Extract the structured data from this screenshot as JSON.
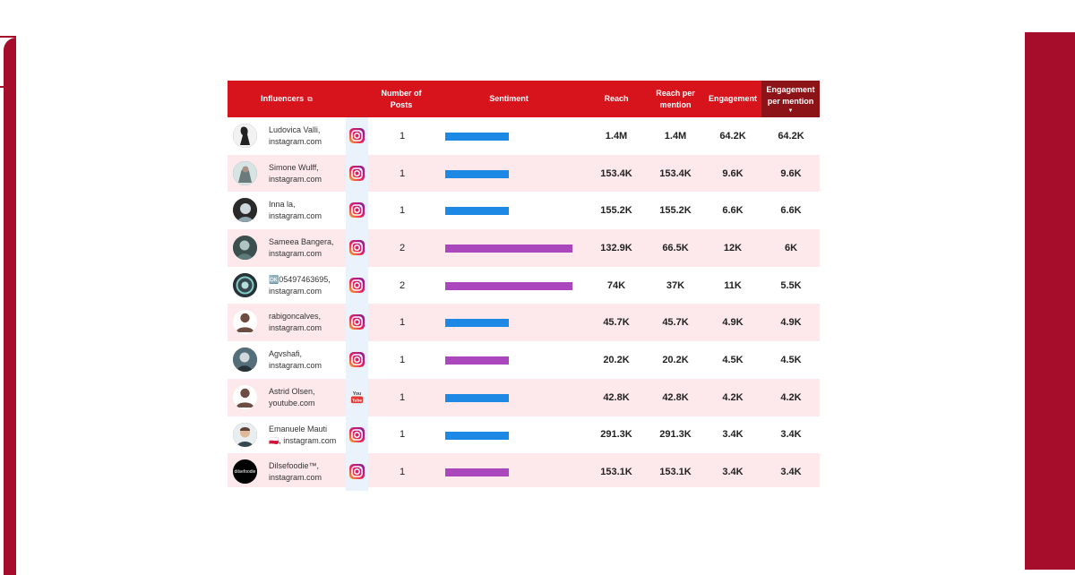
{
  "colors": {
    "header_bg": "#d7141c",
    "header_sorted_bg": "#8c1419",
    "row_alt_bg": "#fde9eb",
    "deco_bg": "#a50d2a",
    "positive_bar": "#1e88e5",
    "neutral_bar": "#ab47bc"
  },
  "header": {
    "influencers": "Influencers",
    "influencers_icon": "external-link-icon",
    "posts": "Number of Posts",
    "sentiment": "Sentiment",
    "reach": "Reach",
    "reach_per_mention": "Reach per mention",
    "engagement": "Engagement",
    "engagement_per_mention": "Engagement per mention",
    "sorted_column": "engagement_per_mention",
    "sort_direction": "descending"
  },
  "rows": [
    {
      "name": "Ludovica Valli, instagram.com",
      "platform": "instagram",
      "avatar": "photo",
      "posts": "1",
      "sentiment": "positive",
      "sentiment_fraction": 0.5,
      "reach": "1.4M",
      "reach_per_mention": "1.4M",
      "engagement": "64.2K",
      "engagement_per_mention": "64.2K"
    },
    {
      "name": "Simone Wulff, instagram.com",
      "platform": "instagram",
      "avatar": "photo",
      "posts": "1",
      "sentiment": "positive",
      "sentiment_fraction": 0.5,
      "reach": "153.4K",
      "reach_per_mention": "153.4K",
      "engagement": "9.6K",
      "engagement_per_mention": "9.6K"
    },
    {
      "name": "Inna la, instagram.com",
      "platform": "instagram",
      "avatar": "photo",
      "posts": "1",
      "sentiment": "positive",
      "sentiment_fraction": 0.5,
      "reach": "155.2K",
      "reach_per_mention": "155.2K",
      "engagement": "6.6K",
      "engagement_per_mention": "6.6K"
    },
    {
      "name": "Sameea Bangera, instagram.com",
      "platform": "instagram",
      "avatar": "photo",
      "posts": "2",
      "sentiment": "neutral",
      "sentiment_fraction": 1.0,
      "reach": "132.9K",
      "reach_per_mention": "66.5K",
      "engagement": "12K",
      "engagement_per_mention": "6K"
    },
    {
      "name_prefix": "🆗",
      "name": "05497463695, instagram.com",
      "platform": "instagram",
      "avatar": "photo",
      "posts": "2",
      "sentiment": "neutral",
      "sentiment_fraction": 1.0,
      "reach": "74K",
      "reach_per_mention": "37K",
      "engagement": "11K",
      "engagement_per_mention": "5.5K"
    },
    {
      "name": "rabigoncalves, instagram.com",
      "platform": "instagram",
      "avatar": "generic",
      "posts": "1",
      "sentiment": "positive",
      "sentiment_fraction": 0.5,
      "reach": "45.7K",
      "reach_per_mention": "45.7K",
      "engagement": "4.9K",
      "engagement_per_mention": "4.9K"
    },
    {
      "name": "Agvshafi, instagram.com",
      "platform": "instagram",
      "avatar": "photo",
      "posts": "1",
      "sentiment": "neutral",
      "sentiment_fraction": 0.5,
      "reach": "20.2K",
      "reach_per_mention": "20.2K",
      "engagement": "4.5K",
      "engagement_per_mention": "4.5K"
    },
    {
      "name": "Astrid Olsen, youtube.com",
      "platform": "youtube",
      "avatar": "generic",
      "posts": "1",
      "sentiment": "positive",
      "sentiment_fraction": 0.5,
      "reach": "42.8K",
      "reach_per_mention": "42.8K",
      "engagement": "4.2K",
      "engagement_per_mention": "4.2K"
    },
    {
      "name_line1": "Emanuele Mauti",
      "name_flag": "🇵🇱",
      "name_line2": ", instagram.com",
      "platform": "instagram",
      "avatar": "photo",
      "posts": "1",
      "sentiment": "positive",
      "sentiment_fraction": 0.5,
      "reach": "291.3K",
      "reach_per_mention": "291.3K",
      "engagement": "3.4K",
      "engagement_per_mention": "3.4K"
    },
    {
      "name": "Dilsefoodie™, instagram.com",
      "platform": "instagram",
      "avatar": "logo",
      "posts": "1",
      "sentiment": "neutral",
      "sentiment_fraction": 0.5,
      "reach": "153.1K",
      "reach_per_mention": "153.1K",
      "engagement": "3.4K",
      "engagement_per_mention": "3.4K"
    }
  ]
}
